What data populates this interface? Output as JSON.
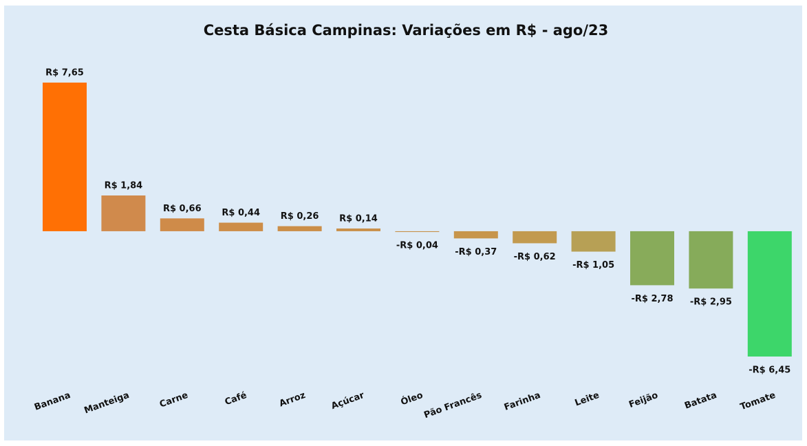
{
  "chart_data": {
    "type": "bar",
    "title": "Cesta Básica Campinas: Variações em R$ - ago/23",
    "categories": [
      "Banana",
      "Manteiga",
      "Carne",
      "Café",
      "Arroz",
      "Açúcar",
      "Óleo",
      "Pão Francês",
      "Farinha",
      "Leite",
      "Feijão",
      "Batata",
      "Tomate"
    ],
    "values": [
      7.65,
      1.84,
      0.66,
      0.44,
      0.26,
      0.14,
      -0.04,
      -0.37,
      -0.62,
      -1.05,
      -2.78,
      -2.95,
      -6.45
    ],
    "value_labels": [
      "R$ 7,65",
      "R$ 1,84",
      "R$ 0,66",
      "R$ 0,44",
      "R$ 0,26",
      "R$ 0,14",
      "-R$ 0,04",
      "-R$ 0,37",
      "-R$ 0,62",
      "-R$ 1,05",
      "-R$ 2,78",
      "-R$ 2,95",
      "-R$ 6,45"
    ],
    "colors": [
      "#ff7004",
      "#d08a4c",
      "#cf8b49",
      "#cd8d48",
      "#cb8e48",
      "#c9904a",
      "#c8924a",
      "#c7954b",
      "#c29a4f",
      "#b7a055",
      "#88ab5a",
      "#86ab5a",
      "#3dd66a"
    ]
  }
}
